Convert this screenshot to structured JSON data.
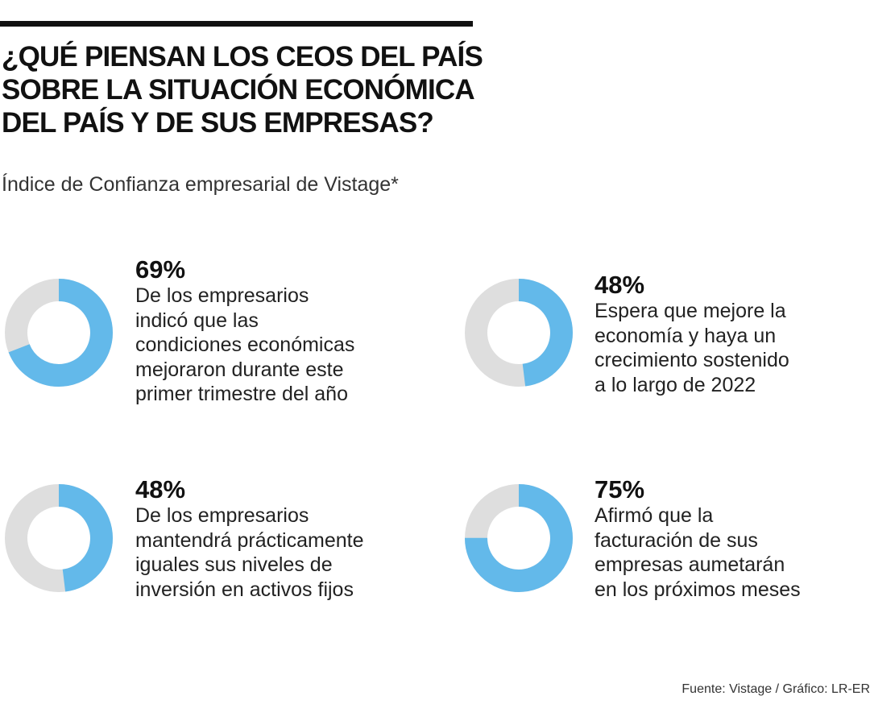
{
  "header": {
    "title_lines": [
      "¿QUÉ PIENSAN LOS CEOS DEL PAÍS",
      "SOBRE LA SITUACIÓN ECONÓMICA",
      "DEL PAÍS Y DE SUS EMPRESAS?"
    ],
    "subtitle": "Índice de Confianza empresarial de Vistage*"
  },
  "chart_data": [
    {
      "type": "pie",
      "variant": "donut",
      "value": 69,
      "remainder": 31,
      "label": "69%",
      "description_lines": [
        "De los empresarios",
        "indicó que las",
        "condiciones económicas",
        "mejoraron durante este",
        "primer trimestre del año"
      ]
    },
    {
      "type": "pie",
      "variant": "donut",
      "value": 48,
      "remainder": 52,
      "label": "48%",
      "description_lines": [
        "Espera que mejore la",
        "economía y haya un",
        "crecimiento sostenido",
        "a lo largo de 2022"
      ]
    },
    {
      "type": "pie",
      "variant": "donut",
      "value": 48,
      "remainder": 52,
      "label": "48%",
      "description_lines": [
        "De los empresarios",
        "mantendrá prácticamente",
        "iguales sus niveles de",
        "inversión en activos fijos"
      ]
    },
    {
      "type": "pie",
      "variant": "donut",
      "value": 75,
      "remainder": 25,
      "label": "75%",
      "description_lines": [
        "Afirmó que la",
        "facturación de sus",
        "empresas aumetarán",
        "en los próximos meses"
      ]
    }
  ],
  "colors": {
    "value": "#63b9ea",
    "remainder": "#dedede",
    "rule": "#111111"
  },
  "footer": {
    "source": "Fuente: Vistage / Gráfico: LR-ER"
  }
}
